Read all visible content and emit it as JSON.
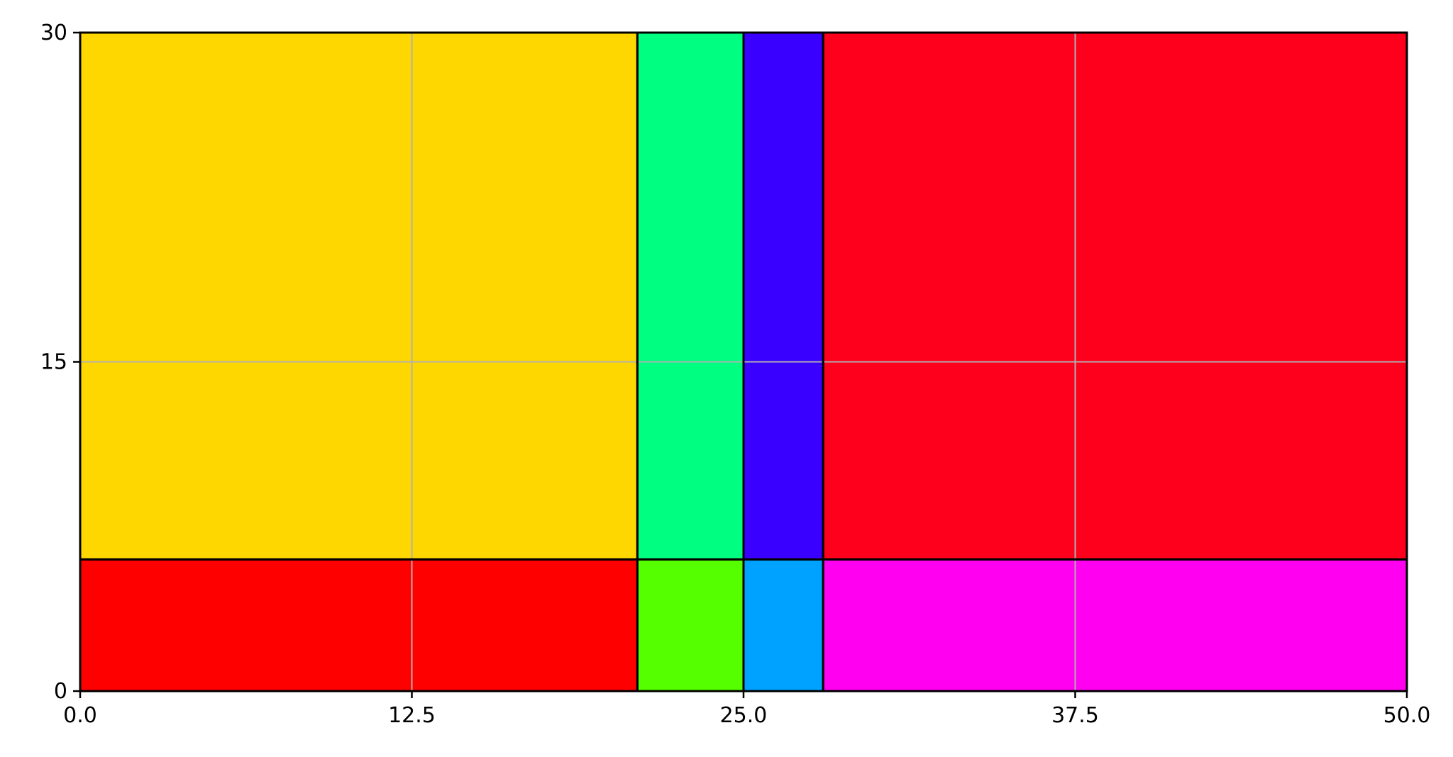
{
  "chart_data": {
    "type": "treemap",
    "xlim": [
      0,
      50
    ],
    "ylim": [
      0,
      30
    ],
    "grid": true,
    "x_ticks": [
      "0.0",
      "12.5",
      "25.0",
      "37.5",
      "50.0"
    ],
    "y_ticks": [
      "0",
      "15",
      "30"
    ],
    "x_tick_values": [
      0,
      12.5,
      25,
      37.5,
      50
    ],
    "y_tick_values": [
      0,
      15,
      30
    ],
    "rects": [
      {
        "x0": 0,
        "x1": 21,
        "y0": 6,
        "y1": 30,
        "color": "#FFD700"
      },
      {
        "x0": 0,
        "x1": 21,
        "y0": 0,
        "y1": 6,
        "color": "#FF0000"
      },
      {
        "x0": 21,
        "x1": 25,
        "y0": 6,
        "y1": 30,
        "color": "#00FF80"
      },
      {
        "x0": 21,
        "x1": 25,
        "y0": 0,
        "y1": 6,
        "color": "#55FF00"
      },
      {
        "x0": 25,
        "x1": 28,
        "y0": 6,
        "y1": 30,
        "color": "#3A00FF"
      },
      {
        "x0": 25,
        "x1": 28,
        "y0": 0,
        "y1": 6,
        "color": "#00A2FF"
      },
      {
        "x0": 28,
        "x1": 50,
        "y0": 6,
        "y1": 30,
        "color": "#FF001C"
      },
      {
        "x0": 28,
        "x1": 50,
        "y0": 0,
        "y1": 6,
        "color": "#FF00F0"
      }
    ],
    "grid_color": "#B0B0B0",
    "edge_color": "#000000"
  }
}
